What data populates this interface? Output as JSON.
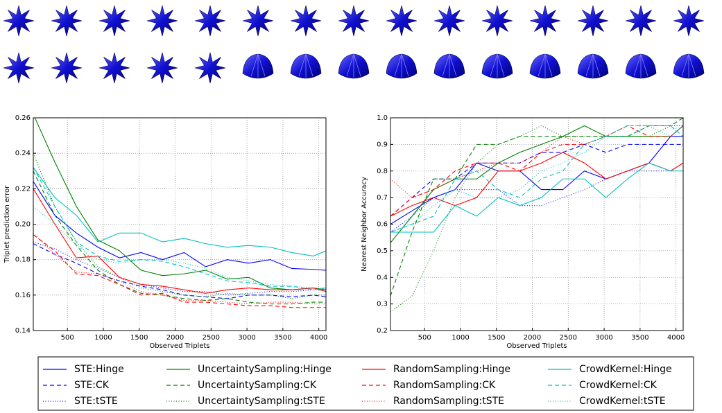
{
  "chart_data": [
    {
      "type": "line",
      "xlabel": "Observed Triplets",
      "ylabel": "Triplet prediction error",
      "x": [
        25,
        325,
        625,
        925,
        1225,
        1525,
        1825,
        2125,
        2425,
        2725,
        3025,
        3325,
        3625,
        3925,
        4100
      ],
      "xlim": [
        25,
        4100
      ],
      "xticks": [
        500,
        1000,
        1500,
        2000,
        2500,
        3000,
        3500,
        4000
      ],
      "ylim": [
        0.14,
        0.26
      ],
      "yticks": [
        0.14,
        0.16,
        0.18,
        {
          "value": 0.2,
          "label": "0.20"
        },
        0.22,
        0.24,
        0.26
      ],
      "grid": true,
      "series": [
        {
          "name": "STE:Hinge",
          "color": "#0000ff",
          "style": "solid",
          "values": [
            0.224,
            0.205,
            0.195,
            0.187,
            0.181,
            0.184,
            0.18,
            0.184,
            0.176,
            0.18,
            0.178,
            0.18,
            0.175,
            0.1745,
            0.174
          ]
        },
        {
          "name": "STE:CK",
          "color": "#0000ff",
          "style": "dashed",
          "values": [
            0.189,
            0.183,
            0.178,
            0.172,
            0.168,
            0.165,
            0.163,
            0.16,
            0.159,
            0.158,
            0.16,
            0.16,
            0.159,
            0.16,
            0.159
          ]
        },
        {
          "name": "STE:tSTE",
          "color": "#0000ff",
          "style": "dotted",
          "values": [
            0.19,
            0.186,
            0.18,
            0.175,
            0.17,
            0.166,
            0.164,
            0.162,
            0.162,
            0.16,
            0.161,
            0.162,
            0.162,
            0.163,
            0.163
          ]
        },
        {
          "name": "UncertaintySampling:Hinge",
          "color": "#008000",
          "style": "solid",
          "values": [
            0.262,
            0.235,
            0.21,
            0.191,
            0.185,
            0.174,
            0.171,
            0.172,
            0.174,
            0.169,
            0.17,
            0.164,
            0.163,
            0.164,
            0.163
          ]
        },
        {
          "name": "UncertaintySampling:CK",
          "color": "#008000",
          "style": "dashed",
          "values": [
            0.23,
            0.205,
            0.188,
            0.174,
            0.166,
            0.161,
            0.16,
            0.158,
            0.157,
            0.158,
            0.156,
            0.155,
            0.155,
            0.156,
            0.156
          ]
        },
        {
          "name": "UncertaintySampling:tSTE",
          "color": "#008000",
          "style": "dotted",
          "values": [
            0.24,
            0.21,
            0.19,
            0.176,
            0.17,
            0.164,
            0.162,
            0.16,
            0.159,
            0.161,
            0.16,
            0.16,
            0.158,
            0.16,
            0.16
          ]
        },
        {
          "name": "RandomSampling:Hinge",
          "color": "#ff0000",
          "style": "solid",
          "values": [
            0.22,
            0.2,
            0.181,
            0.182,
            0.17,
            0.166,
            0.165,
            0.163,
            0.161,
            0.163,
            0.164,
            0.163,
            0.163,
            0.164,
            0.162
          ]
        },
        {
          "name": "RandomSampling:CK",
          "color": "#ff0000",
          "style": "dashed",
          "values": [
            0.194,
            0.185,
            0.172,
            0.171,
            0.166,
            0.16,
            0.161,
            0.156,
            0.156,
            0.155,
            0.154,
            0.154,
            0.153,
            0.153,
            0.153
          ]
        },
        {
          "name": "RandomSampling:tSTE",
          "color": "#ff0000",
          "style": "dotted",
          "values": [
            0.195,
            0.183,
            0.173,
            0.172,
            0.168,
            0.162,
            0.16,
            0.157,
            0.157,
            0.156,
            0.155,
            0.156,
            0.156,
            0.155,
            0.155
          ]
        },
        {
          "name": "CrowdKernel:Hinge",
          "color": "#00bfbf",
          "style": "solid",
          "values": [
            0.232,
            0.215,
            0.205,
            0.19,
            0.195,
            0.195,
            0.19,
            0.192,
            0.189,
            0.187,
            0.188,
            0.187,
            0.184,
            0.182,
            0.185
          ]
        },
        {
          "name": "CrowdKernel:CK",
          "color": "#00bfbf",
          "style": "dashed",
          "values": [
            0.232,
            0.21,
            0.19,
            0.182,
            0.179,
            0.18,
            0.179,
            0.176,
            0.172,
            0.168,
            0.167,
            0.165,
            0.165,
            0.163,
            0.164
          ]
        },
        {
          "name": "CrowdKernel:tSTE",
          "color": "#00bfbf",
          "style": "dotted",
          "values": [
            0.21,
            0.2,
            0.188,
            0.18,
            0.178,
            0.18,
            0.18,
            0.178,
            0.175,
            0.17,
            0.168,
            0.166,
            0.165,
            0.164,
            0.164
          ]
        }
      ]
    },
    {
      "type": "line",
      "xlabel": "Observed Triplets",
      "ylabel": "Nearest Neighbor Accuracy",
      "x": [
        25,
        325,
        625,
        925,
        1225,
        1525,
        1825,
        2125,
        2425,
        2725,
        3025,
        3325,
        3625,
        3925,
        4100
      ],
      "xlim": [
        25,
        4100
      ],
      "xticks": [
        500,
        1000,
        1500,
        2000,
        2500,
        3000,
        3500,
        4000
      ],
      "ylim": [
        0.2,
        1.0
      ],
      "yticks": [
        0.2,
        0.3,
        0.4,
        0.5,
        0.6,
        0.7,
        0.8,
        0.9,
        {
          "value": 1.0,
          "label": "1.0"
        }
      ],
      "grid": true,
      "series": [
        {
          "color": "#0000ff",
          "style": "solid",
          "values": [
            0.6,
            0.65,
            0.7,
            0.73,
            0.83,
            0.8,
            0.8,
            0.73,
            0.73,
            0.8,
            0.77,
            0.8,
            0.83,
            0.93,
            0.93
          ]
        },
        {
          "color": "#0000ff",
          "style": "dashed",
          "values": [
            0.63,
            0.7,
            0.77,
            0.77,
            0.83,
            0.83,
            0.83,
            0.87,
            0.87,
            0.9,
            0.87,
            0.9,
            0.9,
            0.9,
            0.9
          ]
        },
        {
          "color": "#0000ff",
          "style": "dotted",
          "values": [
            0.57,
            0.63,
            0.7,
            0.73,
            0.73,
            0.73,
            0.67,
            0.67,
            0.7,
            0.73,
            0.77,
            0.8,
            0.8,
            0.8,
            0.83
          ]
        },
        {
          "color": "#008000",
          "style": "solid",
          "values": [
            0.53,
            0.63,
            0.73,
            0.77,
            0.77,
            0.83,
            0.87,
            0.9,
            0.93,
            0.97,
            0.93,
            0.93,
            0.93,
            0.93,
            0.97
          ]
        },
        {
          "color": "#008000",
          "style": "dashed",
          "values": [
            0.33,
            0.57,
            0.77,
            0.77,
            0.9,
            0.9,
            0.93,
            0.93,
            0.93,
            0.93,
            0.93,
            0.93,
            0.97,
            0.97,
            1.0
          ]
        },
        {
          "color": "#008000",
          "style": "dotted",
          "values": [
            0.27,
            0.33,
            0.5,
            0.7,
            0.83,
            0.9,
            0.93,
            0.97,
            0.93,
            0.93,
            0.93,
            0.93,
            0.93,
            0.97,
            0.97
          ]
        },
        {
          "color": "#ff0000",
          "style": "solid",
          "values": [
            0.63,
            0.67,
            0.7,
            0.67,
            0.7,
            0.8,
            0.8,
            0.83,
            0.87,
            0.83,
            0.77,
            0.8,
            0.83,
            0.8,
            0.83
          ]
        },
        {
          "color": "#ff0000",
          "style": "dashed",
          "values": [
            0.63,
            0.7,
            0.73,
            0.8,
            0.83,
            0.83,
            0.8,
            0.87,
            0.9,
            0.9,
            0.93,
            0.97,
            0.93,
            0.93,
            0.97
          ]
        },
        {
          "color": "#ff0000",
          "style": "dotted",
          "values": [
            0.77,
            0.7,
            0.73,
            0.77,
            0.8,
            0.83,
            0.83,
            0.87,
            0.93,
            0.9,
            0.93,
            0.97,
            0.97,
            0.97,
            0.97
          ]
        },
        {
          "color": "#00bfbf",
          "style": "solid",
          "values": [
            0.57,
            0.57,
            0.57,
            0.67,
            0.63,
            0.7,
            0.67,
            0.7,
            0.77,
            0.77,
            0.7,
            0.77,
            0.83,
            0.8,
            0.8
          ]
        },
        {
          "color": "#00bfbf",
          "style": "dashed",
          "values": [
            0.57,
            0.6,
            0.63,
            0.77,
            0.8,
            0.73,
            0.7,
            0.77,
            0.8,
            0.9,
            0.93,
            0.97,
            0.97,
            0.97,
            0.93
          ]
        },
        {
          "color": "#00bfbf",
          "style": "dotted",
          "values": [
            0.57,
            0.6,
            0.67,
            0.73,
            0.7,
            0.7,
            0.73,
            0.8,
            0.83,
            0.87,
            0.93,
            0.93,
            0.97,
            0.93,
            0.97
          ]
        }
      ]
    }
  ]
}
